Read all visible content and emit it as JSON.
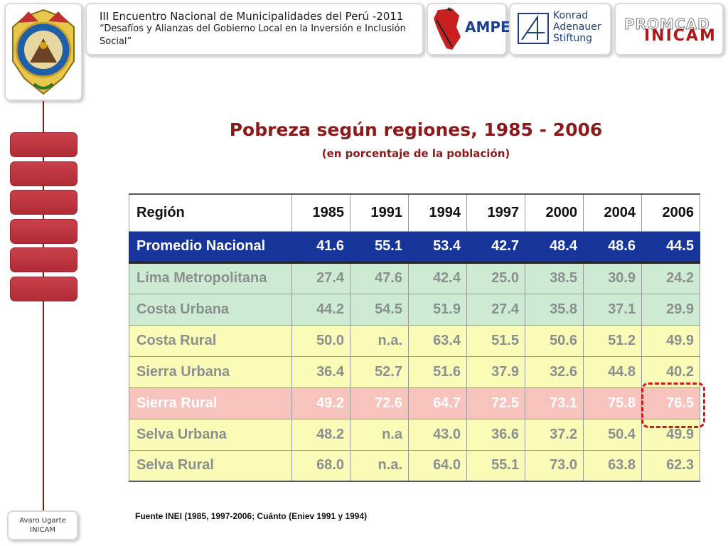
{
  "header": {
    "conference_title": "III Encuentro  Nacional de Municipalidades del Perú -2011",
    "conference_subtitle": "“Desafíos y Alianzas del Gobierno Local en la Inversión e Inclusión Social”",
    "logos": {
      "coat_of_arms": "coat-of-arms",
      "ampe_text": "AMPE",
      "kas_line1": "Konrad",
      "kas_line2": "Adenauer",
      "kas_line3": "Stiftung",
      "promcad_text": "PROMCAD",
      "inicam_text": "INICAM"
    }
  },
  "sidebar": {
    "buttons": [
      {
        "label": ""
      },
      {
        "label": ""
      },
      {
        "label": ""
      },
      {
        "label": ""
      },
      {
        "label": ""
      },
      {
        "label": ""
      }
    ]
  },
  "footer": {
    "line1": "Avaro Ugarte",
    "line2": "INICAM"
  },
  "slide": {
    "title": "Pobreza según regiones, 1985 - 2006",
    "subtitle": "(en porcentaje de la población)",
    "source": "Fuente INEI (1985, 1997-2006; Cuánto (Eniev 1991 y 1994)"
  },
  "table": {
    "headers": [
      "Región",
      "1985",
      "1991",
      "1994",
      "1997",
      "2000",
      "2004",
      "2006"
    ],
    "rows": [
      {
        "style": "national",
        "cells": [
          "Promedio Nacional",
          "41.6",
          "55.1",
          "53.4",
          "42.7",
          "48.4",
          "48.6",
          "44.5"
        ]
      },
      {
        "style": "green",
        "cells": [
          "Lima Metropolitana",
          "27.4",
          "47.6",
          "42.4",
          "25.0",
          "38.5",
          "30.9",
          "24.2"
        ]
      },
      {
        "style": "green",
        "cells": [
          "Costa Urbana",
          "44.2",
          "54.5",
          "51.9",
          "27.4",
          "35.8",
          "37.1",
          "29.9"
        ]
      },
      {
        "style": "yellow",
        "cells": [
          "Costa Rural",
          "50.0",
          "n.a.",
          "63.4",
          "51.5",
          "50.6",
          "51.2",
          "49.9"
        ]
      },
      {
        "style": "yellow",
        "cells": [
          "Sierra Urbana",
          "36.4",
          "52.7",
          "51.6",
          "37.9",
          "32.6",
          "44.8",
          "40.2"
        ]
      },
      {
        "style": "pink",
        "cells": [
          "Sierra Rural",
          "49.2",
          "72.6",
          "64.7",
          "72.5",
          "73.1",
          "75.8",
          "76.5"
        ]
      },
      {
        "style": "yellow",
        "cells": [
          "Selva Urbana",
          "48.2",
          "n.a",
          "43.0",
          "36.6",
          "37.2",
          "50.4",
          "49.9"
        ]
      },
      {
        "style": "yellow",
        "cells": [
          "Selva Rural",
          "68.0",
          "n.a.",
          "64.0",
          "55.1",
          "73.0",
          "63.8",
          "62.3"
        ]
      }
    ]
  },
  "colors": {
    "national_row": "#16349a",
    "green_row": "#ccebd2",
    "yellow_row": "#fbfbb8",
    "pink_row": "#f7c3bd",
    "title": "#8b1a1a",
    "highlight": "#d01a1a"
  }
}
